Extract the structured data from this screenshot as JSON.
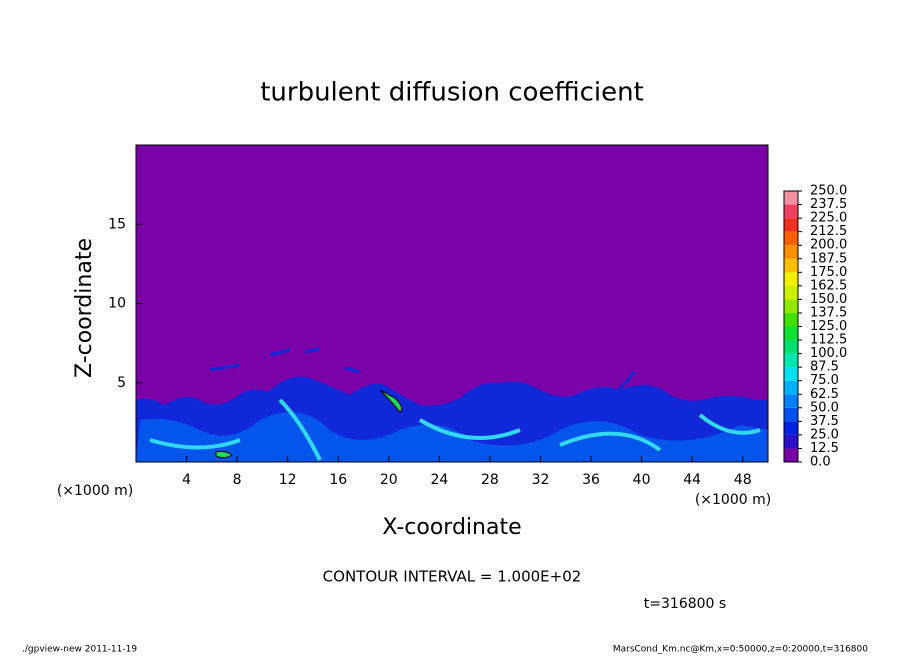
{
  "chart_data": {
    "type": "heatmap",
    "title": "turbulent diffusion coefficient",
    "x_label": "X-coordinate",
    "y_label": "Z-coordinate",
    "x_unit": "(×1000 m)",
    "y_unit": "(×1000 m)",
    "xlim": [
      0,
      50
    ],
    "ylim": [
      0,
      20
    ],
    "xticks": [
      4,
      8,
      12,
      16,
      20,
      24,
      28,
      32,
      36,
      40,
      44,
      48
    ],
    "yticks": [
      5,
      10,
      15
    ],
    "colorbar": {
      "colors": [
        "#7a00a8",
        "#2a10c8",
        "#0020e0",
        "#0050f0",
        "#0080f8",
        "#00b0f8",
        "#00e0f0",
        "#00e8b0",
        "#00e070",
        "#10e030",
        "#40e000",
        "#90e800",
        "#c8f000",
        "#f0f000",
        "#f8c000",
        "#f89000",
        "#f86000",
        "#f03020",
        "#f04060",
        "#f090a0"
      ],
      "ticks": [
        {
          "value": 0,
          "label": "0.0"
        },
        12.5,
        {
          "value": 25,
          "label": "25.0"
        },
        37.5,
        {
          "value": 50,
          "label": "50.0"
        },
        62.5,
        {
          "value": 75,
          "label": "75.0"
        },
        87.5,
        {
          "value": 100,
          "label": "100.0"
        },
        112.5,
        {
          "value": 125,
          "label": "125.0"
        },
        137.5,
        {
          "value": 150,
          "label": "150.0"
        },
        162.5,
        {
          "value": 175,
          "label": "175.0"
        },
        187.5,
        {
          "value": 200,
          "label": "200.0"
        },
        212.5,
        {
          "value": 225,
          "label": "225.0"
        },
        237.5,
        {
          "value": 250,
          "label": "250.0"
        }
      ]
    },
    "contour_note": "CONTOUR INTERVAL = 1.000E+02",
    "time_note": "t=316800 s",
    "footer_left": "./gpview-new  2011-11-19",
    "footer_right": "MarsCond_Km.nc@Km,x=0:50000,z=0:20000,t=316800"
  }
}
